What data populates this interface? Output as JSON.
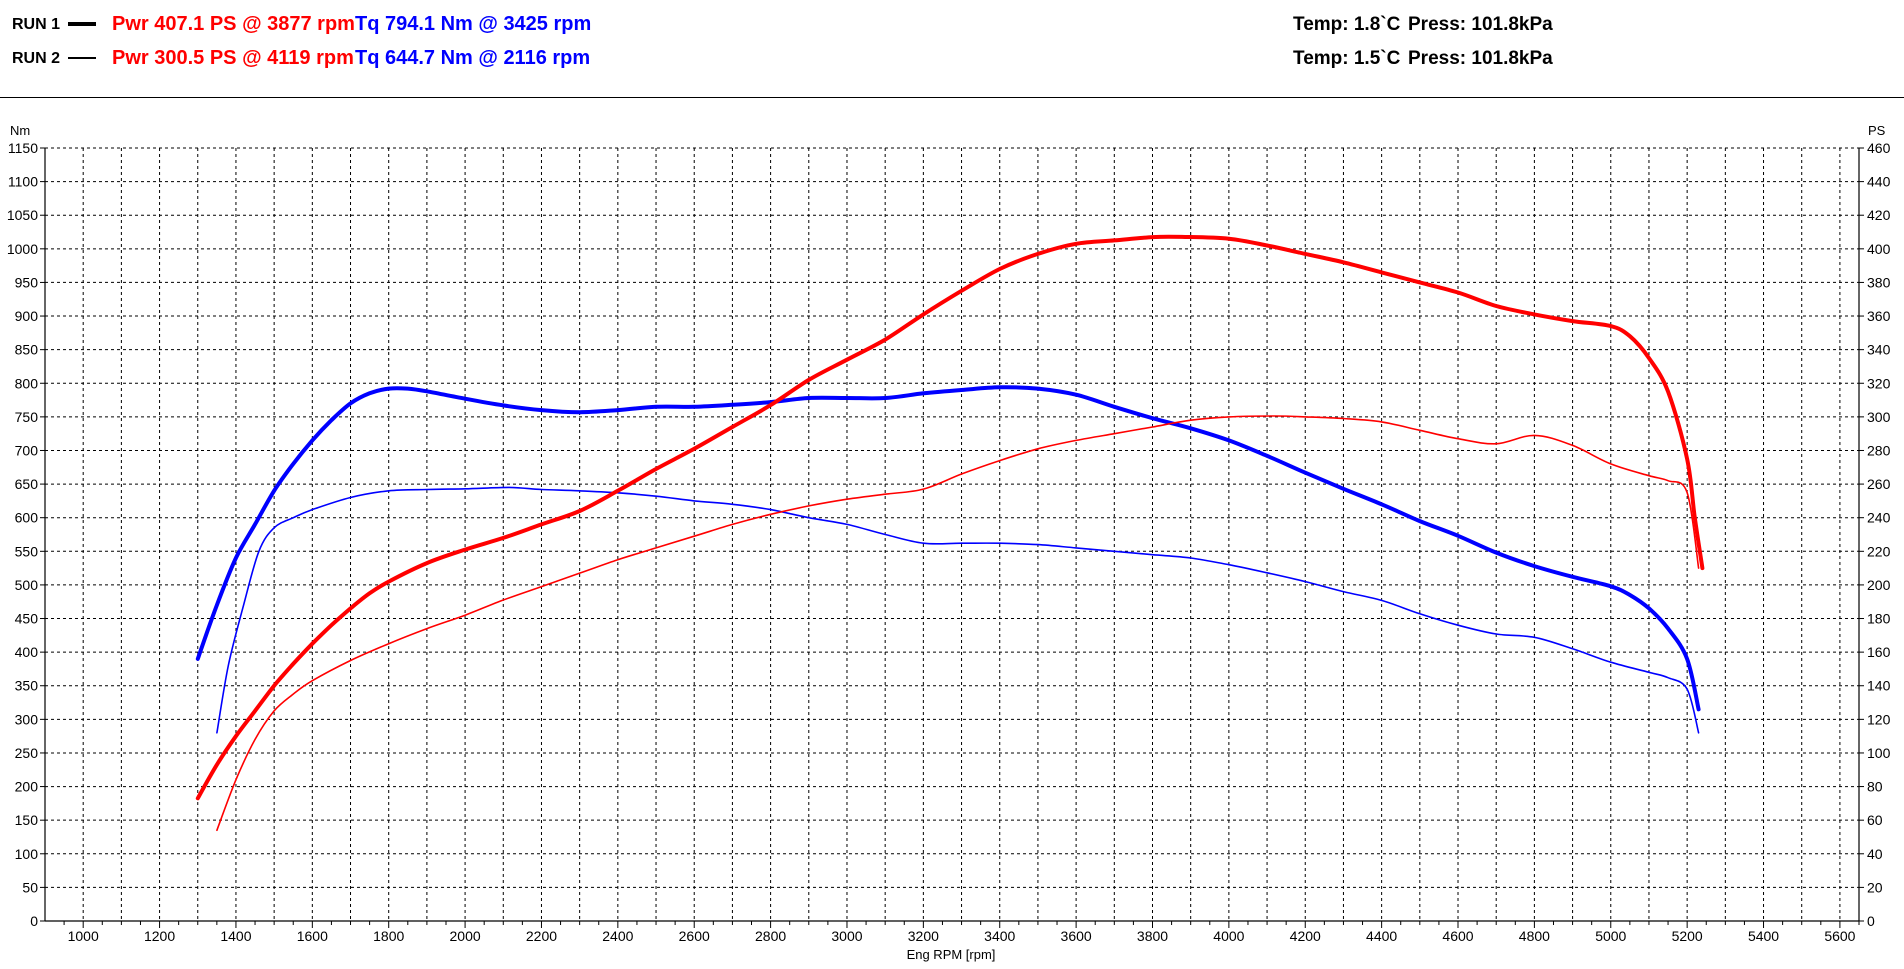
{
  "header": {
    "runs": [
      {
        "label": "RUN 1",
        "power_text": "Pwr  407.1 PS @ 3877 rpm",
        "torque_text": "Tq 794.1 Nm @ 3425 rpm",
        "temp_text": "Temp: 1.8`C",
        "press_text": "Press: 101.8kPa"
      },
      {
        "label": "RUN 2",
        "power_text": "Pwr  300.5 PS @ 4119 rpm",
        "torque_text": "Tq 644.7 Nm @ 2116 rpm",
        "temp_text": "Temp: 1.5`C",
        "press_text": "Press: 101.8kPa"
      }
    ]
  },
  "colors": {
    "power": "#ff0000",
    "torque": "#0000ff",
    "grid": "#000000"
  },
  "chart_data": {
    "type": "line",
    "xlabel": "Eng RPM [rpm]",
    "ylabel_left": "Nm",
    "ylabel_right": "PS",
    "xlim": [
      900,
      5650
    ],
    "ylim_left": [
      0,
      1150
    ],
    "ylim_right": [
      0,
      460
    ],
    "x_ticks": [
      1000,
      1200,
      1400,
      1600,
      1800,
      2000,
      2200,
      2400,
      2600,
      2800,
      3000,
      3200,
      3400,
      3600,
      3800,
      4000,
      4200,
      4400,
      4600,
      4800,
      5000,
      5200,
      5400,
      5600
    ],
    "y_left_ticks": [
      0,
      50,
      100,
      150,
      200,
      250,
      300,
      350,
      400,
      450,
      500,
      550,
      600,
      650,
      700,
      750,
      800,
      850,
      900,
      950,
      1000,
      1050,
      1100,
      1150
    ],
    "y_right_ticks": [
      0,
      20,
      40,
      60,
      80,
      100,
      120,
      140,
      160,
      180,
      200,
      220,
      240,
      260,
      280,
      300,
      320,
      340,
      360,
      380,
      400,
      420,
      440,
      460
    ],
    "grid": true,
    "series": [
      {
        "run": "RUN 1",
        "quantity": "torque",
        "axis": "left",
        "color": "#0000ff",
        "width": "thick",
        "x": [
          1300,
          1350,
          1400,
          1450,
          1500,
          1550,
          1600,
          1650,
          1700,
          1750,
          1800,
          1850,
          1900,
          2000,
          2100,
          2200,
          2300,
          2400,
          2500,
          2600,
          2700,
          2800,
          2900,
          3000,
          3100,
          3200,
          3300,
          3400,
          3500,
          3600,
          3700,
          3800,
          3900,
          4000,
          4100,
          4200,
          4300,
          4400,
          4500,
          4600,
          4700,
          4800,
          4900,
          5000,
          5050,
          5100,
          5150,
          5200,
          5230
        ],
        "y": [
          390,
          470,
          540,
          590,
          640,
          680,
          715,
          745,
          770,
          785,
          792,
          792,
          788,
          777,
          767,
          760,
          757,
          760,
          765,
          765,
          768,
          772,
          778,
          778,
          778,
          785,
          790,
          794,
          792,
          783,
          765,
          748,
          733,
          715,
          692,
          667,
          643,
          620,
          595,
          573,
          548,
          528,
          512,
          498,
          485,
          465,
          435,
          390,
          315
        ]
      },
      {
        "run": "RUN 2",
        "quantity": "torque",
        "axis": "left",
        "color": "#0000ff",
        "width": "thin",
        "x": [
          1350,
          1380,
          1420,
          1460,
          1500,
          1550,
          1600,
          1700,
          1800,
          1900,
          2000,
          2116,
          2200,
          2300,
          2400,
          2500,
          2600,
          2700,
          2800,
          2900,
          3000,
          3100,
          3200,
          3300,
          3400,
          3500,
          3600,
          3700,
          3800,
          3900,
          4000,
          4100,
          4200,
          4300,
          4400,
          4500,
          4600,
          4700,
          4800,
          4900,
          5000,
          5100,
          5150,
          5200,
          5230
        ],
        "y": [
          280,
          380,
          470,
          550,
          585,
          600,
          612,
          630,
          640,
          642,
          643,
          645,
          642,
          640,
          637,
          632,
          625,
          620,
          612,
          600,
          590,
          575,
          562,
          562,
          562,
          560,
          555,
          550,
          545,
          540,
          530,
          518,
          505,
          490,
          477,
          457,
          440,
          427,
          422,
          405,
          385,
          370,
          362,
          345,
          280
        ]
      },
      {
        "run": "RUN 1",
        "quantity": "power",
        "axis": "right",
        "color": "#ff0000",
        "width": "thick",
        "x": [
          1300,
          1350,
          1400,
          1450,
          1500,
          1550,
          1600,
          1650,
          1700,
          1750,
          1800,
          1900,
          2000,
          2100,
          2200,
          2300,
          2400,
          2500,
          2600,
          2700,
          2800,
          2900,
          3000,
          3100,
          3200,
          3300,
          3400,
          3500,
          3600,
          3700,
          3800,
          3877,
          4000,
          4100,
          4200,
          4300,
          4400,
          4500,
          4600,
          4700,
          4800,
          4900,
          5000,
          5050,
          5100,
          5150,
          5200,
          5220,
          5240
        ],
        "y": [
          73,
          93,
          110,
          125,
          140,
          153,
          165,
          176,
          186,
          195,
          202,
          213,
          221,
          228,
          236,
          244,
          256,
          269,
          281,
          294,
          307,
          322,
          334,
          346,
          361,
          375,
          388,
          397,
          403,
          405,
          407,
          407.1,
          406,
          402,
          397,
          392,
          386,
          380,
          374,
          366,
          361,
          357,
          354,
          348,
          335,
          315,
          275,
          240,
          210
        ]
      },
      {
        "run": "RUN 2",
        "quantity": "power",
        "axis": "right",
        "color": "#ff0000",
        "width": "thin",
        "x": [
          1350,
          1400,
          1450,
          1500,
          1550,
          1600,
          1700,
          1800,
          1900,
          2000,
          2100,
          2200,
          2300,
          2400,
          2500,
          2600,
          2700,
          2800,
          2900,
          3000,
          3100,
          3200,
          3300,
          3400,
          3500,
          3600,
          3700,
          3800,
          3900,
          4000,
          4119,
          4200,
          4300,
          4400,
          4500,
          4600,
          4700,
          4800,
          4900,
          5000,
          5100,
          5150,
          5200,
          5230
        ],
        "y": [
          54,
          84,
          108,
          125,
          135,
          143,
          155,
          165,
          174,
          182,
          191,
          199,
          207,
          215,
          222,
          229,
          236,
          242,
          247,
          251,
          254,
          257,
          266,
          274,
          281,
          286,
          290,
          294,
          298,
          300,
          300.5,
          300,
          299,
          297,
          292,
          287,
          284,
          289,
          283,
          272,
          265,
          262,
          255,
          210
        ]
      }
    ]
  }
}
